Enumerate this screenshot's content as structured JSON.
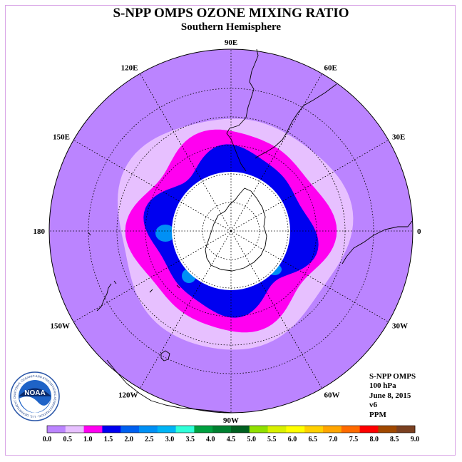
{
  "title": "S-NPP OMPS OZONE MIXING RATIO",
  "subtitle": "Southern Hemisphere",
  "longitude_labels": [
    {
      "text": "90W",
      "lon": -90
    },
    {
      "text": "60W",
      "lon": -60
    },
    {
      "text": "30W",
      "lon": -30
    },
    {
      "text": "0",
      "lon": 0
    },
    {
      "text": "30E",
      "lon": 30
    },
    {
      "text": "60E",
      "lon": 60
    },
    {
      "text": "90E",
      "lon": 90
    },
    {
      "text": "120E",
      "lon": 120
    },
    {
      "text": "150E",
      "lon": 150
    },
    {
      "text": "180",
      "lon": 180
    },
    {
      "text": "150W",
      "lon": -150
    },
    {
      "text": "120W",
      "lon": -120
    }
  ],
  "info": {
    "instrument": "S-NPP OMPS",
    "level": "100 hPa",
    "date": "June 8, 2015",
    "version": "v6",
    "units": "PPM"
  },
  "logo": {
    "text": "NOAA",
    "ring_text": "NATIONAL OCEANIC AND ATMOSPHERIC ADMINISTRATION · U.S. DEPARTMENT OF COMMERCE"
  },
  "colorbar": {
    "ticks": [
      "0.0",
      "0.5",
      "1.0",
      "1.5",
      "2.0",
      "2.5",
      "3.0",
      "3.5",
      "4.0",
      "4.5",
      "5.0",
      "5.5",
      "6.0",
      "6.5",
      "7.0",
      "7.5",
      "8.0",
      "8.5",
      "9.0"
    ],
    "colors": [
      "#bb84ff",
      "#e7c0ff",
      "#ff00f0",
      "#0000f0",
      "#0060f0",
      "#0090f5",
      "#00b4f5",
      "#30ffd8",
      "#00a040",
      "#008030",
      "#006020",
      "#90e000",
      "#d8f000",
      "#ffff00",
      "#ffd000",
      "#ffa500",
      "#ff6a00",
      "#ff0000",
      "#a04800",
      "#7a4020"
    ]
  },
  "chart_data": {
    "type": "heatmap",
    "projection": "south polar stereographic",
    "variable": "ozone mixing ratio",
    "units": "PPM",
    "pressure_level": "100 hPa",
    "date": "June 8, 2015",
    "outer_value_range": [
      0.0,
      0.5
    ],
    "ring_regions": [
      {
        "range": [
          0.5,
          1.0
        ],
        "description": "band around 40-50S"
      },
      {
        "range": [
          1.0,
          1.5
        ],
        "description": "band around 50-60S"
      },
      {
        "range": [
          1.5,
          2.0
        ],
        "description": "band around 60S"
      },
      {
        "range": [
          2.0,
          2.5
        ],
        "description": "small patches near 60S"
      }
    ],
    "no_data_region": "polar night, south of about 70S"
  }
}
